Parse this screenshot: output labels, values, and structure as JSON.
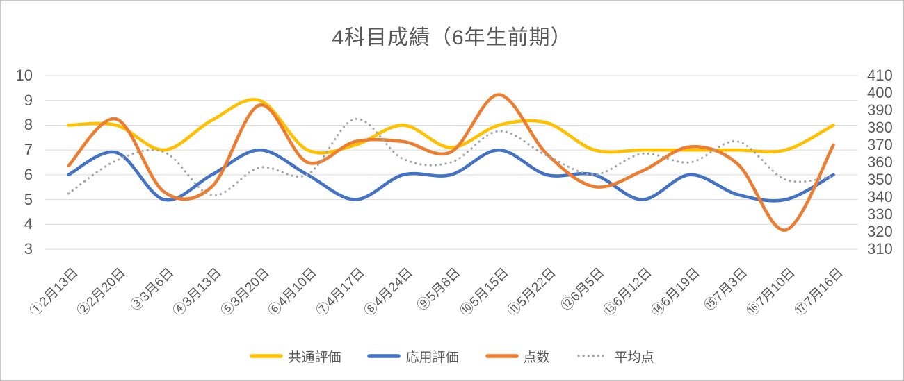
{
  "chart_data": {
    "type": "line",
    "title": "4科目成績（6年生前期）",
    "smoothed": true,
    "grid": "horizontal",
    "legend_position": "bottom",
    "categories": [
      "①2月13日",
      "②2月20日",
      "③3月6日",
      "④3月13日",
      "⑤3月20日",
      "⑥4月10日",
      "⑦4月17日",
      "⑧4月24日",
      "⑨5月8日",
      "⑩5月15日",
      "⑪5月22日",
      "⑫6月5日",
      "⑬6月12日",
      "⑭6月19日",
      "⑮7月3日",
      "⑯7月10日",
      "⑰7月16日"
    ],
    "left_axis": {
      "min": 3,
      "max": 10,
      "ticks": [
        10,
        9,
        8,
        7,
        6,
        5,
        4,
        3
      ]
    },
    "right_axis": {
      "min": 310,
      "max": 410,
      "ticks": [
        410,
        400,
        390,
        380,
        370,
        360,
        350,
        340,
        330,
        320,
        310
      ]
    },
    "series": [
      {
        "name": "共通評価",
        "axis": "left",
        "color": "#FFC000",
        "style": "solid",
        "values": [
          8,
          8,
          7,
          8.2,
          9,
          7,
          7.2,
          8,
          7.1,
          8,
          8.1,
          7,
          7,
          7,
          7,
          7,
          8
        ]
      },
      {
        "name": "応用評価",
        "axis": "left",
        "color": "#4472C4",
        "style": "solid",
        "values": [
          6,
          6.9,
          5,
          6,
          7,
          6,
          5,
          6,
          6,
          7,
          6,
          6,
          5,
          6,
          5.2,
          5,
          6
        ]
      },
      {
        "name": "点数",
        "axis": "right",
        "color": "#ED7D31",
        "style": "solid",
        "values": [
          358,
          385,
          343,
          346,
          393,
          360,
          372,
          372,
          366,
          399,
          365,
          346,
          355,
          369,
          359,
          321,
          370
        ]
      },
      {
        "name": "平均点",
        "axis": "right",
        "color": "#A6A6A6",
        "style": "dotted",
        "values": [
          342,
          361,
          366,
          341,
          357,
          353,
          385,
          362,
          360,
          378,
          364,
          353,
          365,
          360,
          372,
          350,
          352
        ]
      }
    ],
    "gridline_color": "#D9D9D9",
    "text_color": "#595959"
  }
}
